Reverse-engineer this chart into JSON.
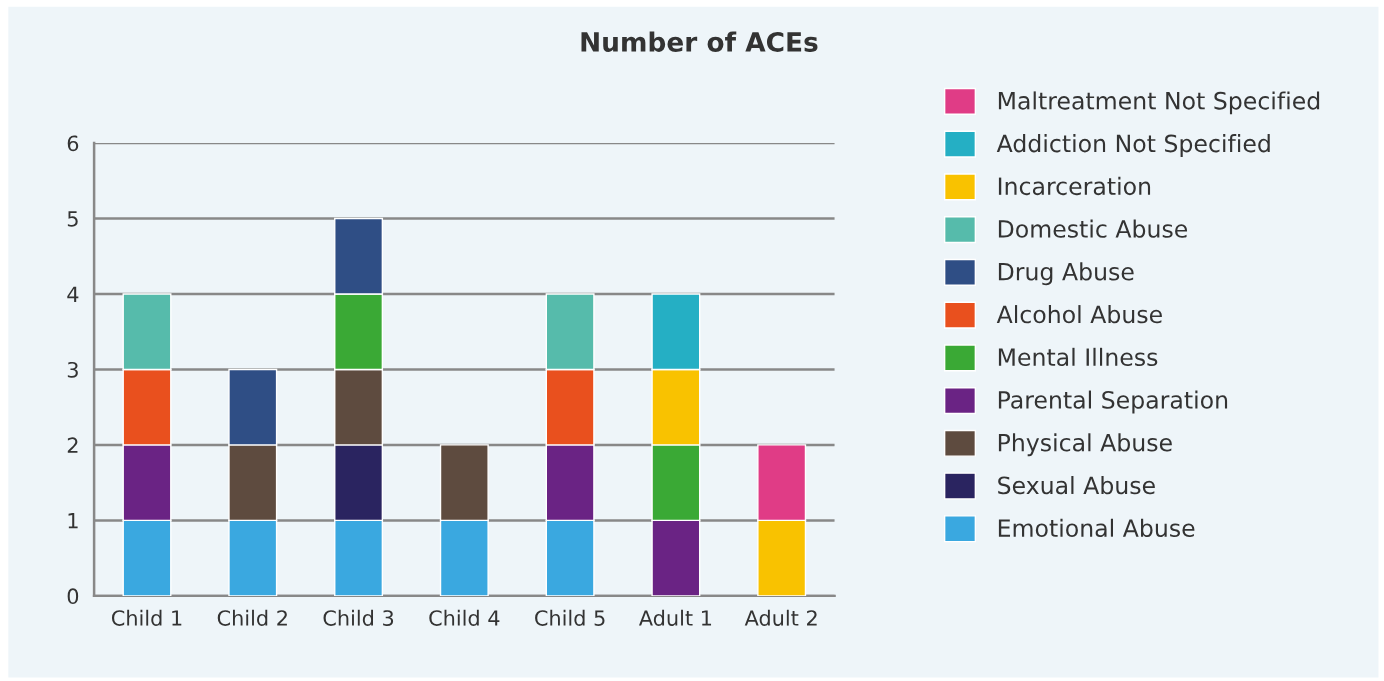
{
  "chart_data": {
    "type": "bar",
    "title": "Number of ACEs",
    "stacked": true,
    "categories": [
      "Child 1",
      "Child 2",
      "Child 3",
      "Child 4",
      "Child 5",
      "Adult 1",
      "Adult 2"
    ],
    "series": [
      {
        "name": "Emotional Abuse",
        "color": "#3aa8e0",
        "values": [
          1,
          1,
          1,
          1,
          1,
          null,
          null
        ]
      },
      {
        "name": "Sexual Abuse",
        "color": "#2a2460",
        "values": [
          null,
          null,
          1,
          null,
          null,
          null,
          null
        ]
      },
      {
        "name": "Physical Abuse",
        "color": "#5e4b3f",
        "values": [
          null,
          1,
          1,
          1,
          null,
          null,
          null
        ]
      },
      {
        "name": "Parental Separation",
        "color": "#6a2384",
        "values": [
          1,
          null,
          null,
          null,
          1,
          1,
          null
        ]
      },
      {
        "name": "Mental Illness",
        "color": "#3aa935",
        "values": [
          null,
          null,
          1,
          null,
          null,
          1,
          null
        ]
      },
      {
        "name": "Alcohol Abuse",
        "color": "#e9501e",
        "values": [
          1,
          null,
          null,
          null,
          1,
          null,
          null
        ]
      },
      {
        "name": "Drug Abuse",
        "color": "#2f4e85",
        "values": [
          null,
          1,
          1,
          null,
          null,
          null,
          null
        ]
      },
      {
        "name": "Domestic Abuse",
        "color": "#56bbab",
        "values": [
          1,
          null,
          null,
          null,
          1,
          null,
          null
        ]
      },
      {
        "name": "Incarceration",
        "color": "#f9c200",
        "values": [
          null,
          null,
          null,
          null,
          null,
          1,
          1
        ]
      },
      {
        "name": "Addiction Not Specified",
        "color": "#25afc4",
        "values": [
          null,
          null,
          null,
          null,
          null,
          1,
          null
        ]
      },
      {
        "name": "Maltreatment Not Specified",
        "color": "#e03c86",
        "values": [
          null,
          null,
          null,
          null,
          null,
          null,
          1
        ]
      }
    ],
    "ylim": [
      0,
      6
    ],
    "yticks": [
      0,
      1,
      2,
      3,
      4,
      5,
      6
    ],
    "grid": "y",
    "legend": "right"
  }
}
